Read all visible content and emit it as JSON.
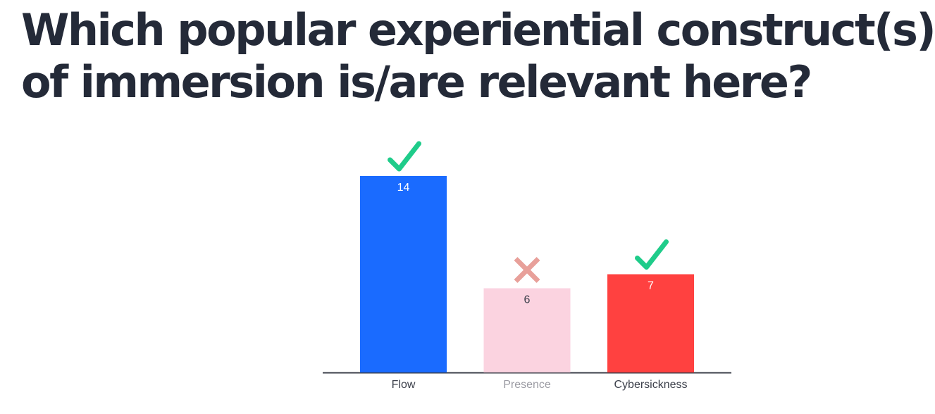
{
  "question": {
    "line1": "Which popular experiential construct(s)",
    "line2": "of immersion is/are relevant here?"
  },
  "colors": {
    "text": "#242a38",
    "axis": "#3b3f4a",
    "correct_mark": "#1fcc8a",
    "incorrect_mark": "#e8a09a"
  },
  "chart_data": {
    "type": "bar",
    "categories": [
      "Flow",
      "Presence",
      "Cybersickness"
    ],
    "values": [
      14,
      6,
      7
    ],
    "value_labels": [
      "14",
      "6",
      "7"
    ],
    "bar_colors": [
      "#1a6bff",
      "#fbd3e0",
      "#ff4140"
    ],
    "value_label_colors": [
      "#ffffff",
      "#3b3f4a",
      "#ffffff"
    ],
    "category_label_colors": [
      "#3b3f4a",
      "#9a9aa2",
      "#3b3f4a"
    ],
    "marks": [
      "check-icon",
      "cross-icon",
      "check-icon"
    ],
    "title": "",
    "xlabel": "",
    "ylabel": "",
    "ylim": [
      0,
      14
    ],
    "grid": false,
    "legend": "none"
  }
}
